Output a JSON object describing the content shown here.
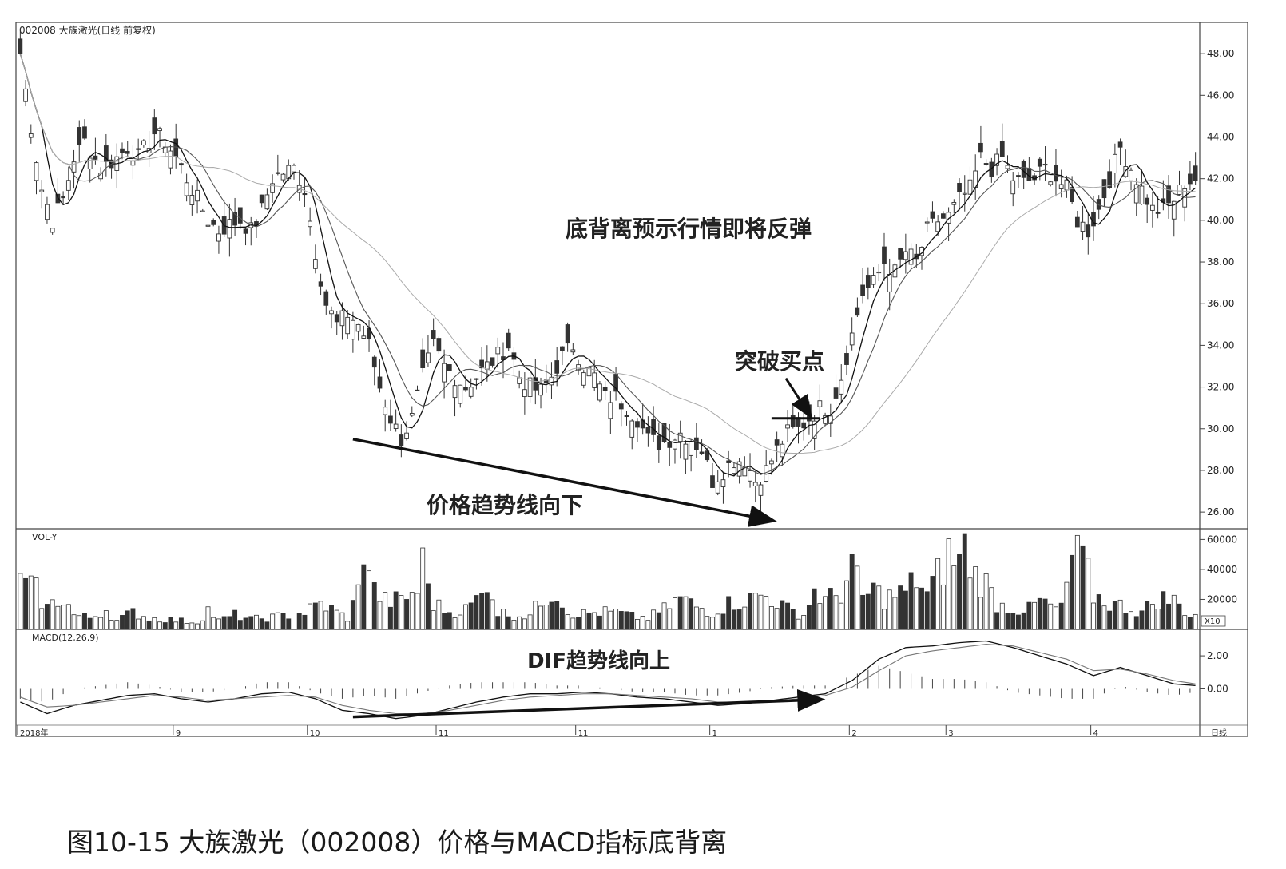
{
  "chart_data": {
    "type": "candlestick",
    "title": "002008 大族激光(日线 前复权)",
    "caption": "图10-15 大族激光（002008）价格与MACD指标底背离",
    "price_axis": {
      "ticks": [
        "48.00",
        "46.00",
        "44.00",
        "42.00",
        "40.00",
        "38.00",
        "36.00",
        "34.00",
        "32.00",
        "30.00",
        "28.00",
        "26.00"
      ],
      "ylim": [
        25.2,
        49.5
      ]
    },
    "volume_panel": {
      "label": "VOL-Y",
      "ticks": [
        "60000",
        "40000",
        "20000"
      ],
      "unit": "X10",
      "ylim": [
        0,
        65000
      ]
    },
    "macd_panel": {
      "label": "MACD(12,26,9)",
      "ticks": [
        "2.00",
        "0.00"
      ],
      "ylim": [
        -2.2,
        3.6
      ]
    },
    "x_labels": [
      {
        "label": "2018年",
        "index": 0
      },
      {
        "label": "9",
        "index": 29
      },
      {
        "label": "10",
        "index": 54
      },
      {
        "label": "11",
        "index": 78
      },
      {
        "label": "11",
        "index": 104
      },
      {
        "label": "1",
        "index": 129
      },
      {
        "label": "2",
        "index": 155
      },
      {
        "label": "3",
        "index": 173
      },
      {
        "label": "4",
        "index": 200
      }
    ],
    "x_unit_label": "日线",
    "annotations": {
      "bottom_divergence": "底背离预示行情即将反弹",
      "breakout_buy": "突破买点",
      "price_trend": "价格趋势线向下",
      "dif_trend": "DIF趋势线向上"
    },
    "price_trendline": {
      "from_index": 62,
      "from_price": 29.5,
      "to_index": 140,
      "to_price": 25.6
    },
    "dif_trendline": {
      "from_index": 62,
      "from_value": -1.7,
      "to_index": 149,
      "to_value": -0.65
    },
    "breakout_level": {
      "from_index": 140,
      "to_index": 149,
      "price": 30.5
    },
    "close_anchors": [
      [
        0,
        48.0
      ],
      [
        2,
        44.5
      ],
      [
        4,
        41.5
      ],
      [
        6,
        40.0
      ],
      [
        8,
        41.0
      ],
      [
        10,
        43.0
      ],
      [
        12,
        43.8
      ],
      [
        15,
        42.5
      ],
      [
        18,
        43.0
      ],
      [
        20,
        43.5
      ],
      [
        22,
        43.0
      ],
      [
        25,
        44.2
      ],
      [
        27,
        43.8
      ],
      [
        29,
        43.0
      ],
      [
        31,
        42.0
      ],
      [
        33,
        41.0
      ],
      [
        35,
        40.0
      ],
      [
        37,
        39.5
      ],
      [
        39,
        39.8
      ],
      [
        41,
        40.0
      ],
      [
        43,
        39.5
      ],
      [
        45,
        40.5
      ],
      [
        47,
        42.0
      ],
      [
        49,
        42.3
      ],
      [
        51,
        42.5
      ],
      [
        53,
        41.5
      ],
      [
        55,
        38.5
      ],
      [
        57,
        36.0
      ],
      [
        59,
        35.0
      ],
      [
        61,
        35.5
      ],
      [
        63,
        35.0
      ],
      [
        65,
        34.0
      ],
      [
        67,
        32.0
      ],
      [
        69,
        30.5
      ],
      [
        71,
        29.5
      ],
      [
        73,
        30.5
      ],
      [
        75,
        32.5
      ],
      [
        77,
        34.0
      ],
      [
        79,
        33.0
      ],
      [
        81,
        32.5
      ],
      [
        83,
        32.0
      ],
      [
        85,
        32.5
      ],
      [
        87,
        33.0
      ],
      [
        89,
        33.5
      ],
      [
        91,
        34.0
      ],
      [
        93,
        32.5
      ],
      [
        95,
        32.0
      ],
      [
        97,
        31.8
      ],
      [
        99,
        32.5
      ],
      [
        101,
        33.5
      ],
      [
        103,
        34.0
      ],
      [
        105,
        33.0
      ],
      [
        107,
        32.5
      ],
      [
        109,
        31.5
      ],
      [
        111,
        31.5
      ],
      [
        113,
        31.0
      ],
      [
        115,
        30.5
      ],
      [
        117,
        29.5
      ],
      [
        119,
        29.3
      ],
      [
        121,
        29.5
      ],
      [
        123,
        29.8
      ],
      [
        125,
        29.5
      ],
      [
        127,
        29.0
      ],
      [
        129,
        27.5
      ],
      [
        131,
        28.0
      ],
      [
        133,
        28.5
      ],
      [
        135,
        28.5
      ],
      [
        137,
        27.5
      ],
      [
        139,
        28.0
      ],
      [
        141,
        29.0
      ],
      [
        143,
        29.8
      ],
      [
        145,
        30.0
      ],
      [
        147,
        30.5
      ],
      [
        149,
        31.0
      ],
      [
        151,
        31.0
      ],
      [
        153,
        32.5
      ],
      [
        155,
        34.5
      ],
      [
        157,
        36.5
      ],
      [
        159,
        37.0
      ],
      [
        161,
        38.0
      ],
      [
        163,
        37.5
      ],
      [
        165,
        38.5
      ],
      [
        167,
        38.0
      ],
      [
        169,
        39.5
      ],
      [
        171,
        40.0
      ],
      [
        173,
        40.2
      ],
      [
        175,
        41.0
      ],
      [
        177,
        41.5
      ],
      [
        179,
        43.0
      ],
      [
        181,
        42.5
      ],
      [
        183,
        43.0
      ],
      [
        185,
        42.0
      ],
      [
        187,
        41.8
      ],
      [
        189,
        42.0
      ],
      [
        191,
        42.5
      ],
      [
        193,
        42.0
      ],
      [
        195,
        41.5
      ],
      [
        197,
        40.0
      ],
      [
        199,
        39.5
      ],
      [
        201,
        40.5
      ],
      [
        203,
        42.0
      ],
      [
        205,
        43.5
      ],
      [
        207,
        42.5
      ],
      [
        209,
        41.5
      ],
      [
        211,
        40.5
      ],
      [
        213,
        40.5
      ],
      [
        215,
        41.0
      ],
      [
        217,
        41.8
      ],
      [
        219,
        42.0
      ]
    ],
    "volume_anchors": [
      [
        0,
        32000
      ],
      [
        3,
        27000
      ],
      [
        5,
        15000
      ],
      [
        8,
        23000
      ],
      [
        10,
        10000
      ],
      [
        13,
        8000
      ],
      [
        16,
        14000
      ],
      [
        18,
        6000
      ],
      [
        21,
        12000
      ],
      [
        24,
        8000
      ],
      [
        27,
        7000
      ],
      [
        30,
        6000
      ],
      [
        33,
        5000
      ],
      [
        35,
        14000
      ],
      [
        37,
        6000
      ],
      [
        40,
        10000
      ],
      [
        43,
        7000
      ],
      [
        46,
        8000
      ],
      [
        50,
        10000
      ],
      [
        53,
        12000
      ],
      [
        56,
        18000
      ],
      [
        58,
        14000
      ],
      [
        61,
        8000
      ],
      [
        63,
        26000
      ],
      [
        64,
        62000
      ],
      [
        65,
        45000
      ],
      [
        66,
        27000
      ],
      [
        68,
        20000
      ],
      [
        71,
        20000
      ],
      [
        74,
        28000
      ],
      [
        75,
        46000
      ],
      [
        77,
        18000
      ],
      [
        80,
        12000
      ],
      [
        83,
        14000
      ],
      [
        86,
        24000
      ],
      [
        87,
        38000
      ],
      [
        89,
        12000
      ],
      [
        92,
        10000
      ],
      [
        95,
        10000
      ],
      [
        98,
        24000
      ],
      [
        100,
        27000
      ],
      [
        102,
        12000
      ],
      [
        105,
        11000
      ],
      [
        108,
        12000
      ],
      [
        111,
        12000
      ],
      [
        114,
        9000
      ],
      [
        117,
        8000
      ],
      [
        120,
        14000
      ],
      [
        123,
        22000
      ],
      [
        126,
        16000
      ],
      [
        129,
        12000
      ],
      [
        132,
        18000
      ],
      [
        135,
        20000
      ],
      [
        138,
        24000
      ],
      [
        140,
        22000
      ],
      [
        143,
        14000
      ],
      [
        146,
        10000
      ],
      [
        148,
        27000
      ],
      [
        150,
        20000
      ],
      [
        153,
        26000
      ],
      [
        155,
        44000
      ],
      [
        157,
        22000
      ],
      [
        159,
        28000
      ],
      [
        161,
        22000
      ],
      [
        163,
        24000
      ],
      [
        165,
        26000
      ],
      [
        167,
        36000
      ],
      [
        169,
        24000
      ],
      [
        171,
        38000
      ],
      [
        173,
        52000
      ],
      [
        175,
        48000
      ],
      [
        176,
        57000
      ],
      [
        178,
        38000
      ],
      [
        180,
        32000
      ],
      [
        182,
        18000
      ],
      [
        185,
        14000
      ],
      [
        188,
        14000
      ],
      [
        190,
        20000
      ],
      [
        192,
        16000
      ],
      [
        194,
        14000
      ],
      [
        196,
        50000
      ],
      [
        198,
        50000
      ],
      [
        200,
        24000
      ],
      [
        203,
        18000
      ],
      [
        206,
        16000
      ],
      [
        209,
        12000
      ],
      [
        212,
        22000
      ],
      [
        215,
        20000
      ],
      [
        218,
        10000
      ]
    ],
    "dif_anchors": [
      [
        0,
        -0.8
      ],
      [
        5,
        -1.5
      ],
      [
        10,
        -1.0
      ],
      [
        15,
        -0.7
      ],
      [
        20,
        -0.4
      ],
      [
        25,
        -0.3
      ],
      [
        30,
        -0.6
      ],
      [
        35,
        -0.8
      ],
      [
        40,
        -0.6
      ],
      [
        45,
        -0.3
      ],
      [
        50,
        -0.2
      ],
      [
        55,
        -0.6
      ],
      [
        60,
        -1.3
      ],
      [
        65,
        -1.5
      ],
      [
        70,
        -1.8
      ],
      [
        75,
        -1.6
      ],
      [
        80,
        -1.2
      ],
      [
        85,
        -0.8
      ],
      [
        90,
        -0.5
      ],
      [
        95,
        -0.3
      ],
      [
        100,
        -0.3
      ],
      [
        105,
        -0.2
      ],
      [
        110,
        -0.3
      ],
      [
        115,
        -0.5
      ],
      [
        120,
        -0.6
      ],
      [
        125,
        -0.8
      ],
      [
        130,
        -1.0
      ],
      [
        135,
        -0.9
      ],
      [
        140,
        -0.7
      ],
      [
        145,
        -0.5
      ],
      [
        150,
        -0.3
      ],
      [
        155,
        0.5
      ],
      [
        160,
        1.8
      ],
      [
        165,
        2.5
      ],
      [
        170,
        2.6
      ],
      [
        175,
        2.8
      ],
      [
        180,
        2.9
      ],
      [
        185,
        2.5
      ],
      [
        190,
        2.0
      ],
      [
        195,
        1.5
      ],
      [
        200,
        0.8
      ],
      [
        205,
        1.3
      ],
      [
        210,
        0.8
      ],
      [
        215,
        0.3
      ],
      [
        219,
        0.2
      ]
    ],
    "dea_anchors": [
      [
        0,
        -0.5
      ],
      [
        5,
        -1.1
      ],
      [
        10,
        -1.0
      ],
      [
        15,
        -0.8
      ],
      [
        20,
        -0.6
      ],
      [
        25,
        -0.4
      ],
      [
        30,
        -0.5
      ],
      [
        35,
        -0.7
      ],
      [
        40,
        -0.6
      ],
      [
        45,
        -0.5
      ],
      [
        50,
        -0.4
      ],
      [
        55,
        -0.5
      ],
      [
        60,
        -1.0
      ],
      [
        65,
        -1.3
      ],
      [
        70,
        -1.5
      ],
      [
        75,
        -1.5
      ],
      [
        80,
        -1.3
      ],
      [
        85,
        -1.0
      ],
      [
        90,
        -0.7
      ],
      [
        95,
        -0.5
      ],
      [
        100,
        -0.4
      ],
      [
        105,
        -0.3
      ],
      [
        110,
        -0.3
      ],
      [
        115,
        -0.4
      ],
      [
        120,
        -0.5
      ],
      [
        125,
        -0.6
      ],
      [
        130,
        -0.8
      ],
      [
        135,
        -0.8
      ],
      [
        140,
        -0.75
      ],
      [
        145,
        -0.6
      ],
      [
        150,
        -0.4
      ],
      [
        155,
        0.1
      ],
      [
        160,
        1.1
      ],
      [
        165,
        2.0
      ],
      [
        170,
        2.3
      ],
      [
        175,
        2.5
      ],
      [
        180,
        2.7
      ],
      [
        185,
        2.6
      ],
      [
        190,
        2.2
      ],
      [
        195,
        1.8
      ],
      [
        200,
        1.1
      ],
      [
        205,
        1.2
      ],
      [
        210,
        0.9
      ],
      [
        215,
        0.5
      ],
      [
        219,
        0.3
      ]
    ],
    "num_bars": 220
  }
}
